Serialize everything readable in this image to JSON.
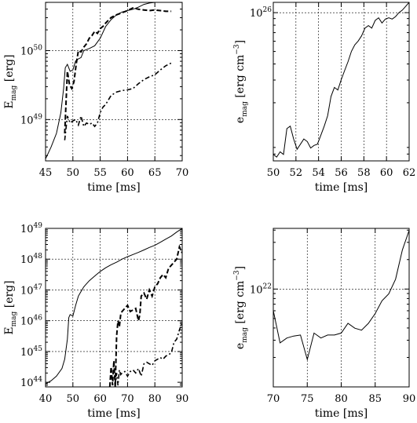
{
  "chart_data": [
    {
      "id": "tl",
      "type": "line",
      "xlabel": "time [ms]",
      "ylabel_main": "E",
      "ylabel_sub": "mag",
      "ylabel_rest": " [erg]",
      "xlim": [
        45,
        70
      ],
      "ylim_log10": [
        48.4,
        50.7
      ],
      "xticks": [
        45,
        50,
        55,
        60,
        65,
        70
      ],
      "xtick_labels": [
        "45",
        "50",
        "55",
        "60",
        "65",
        "70"
      ],
      "yticks_log10": [
        49,
        50
      ],
      "ytick_base": "10",
      "ytick_exps": [
        "49",
        "50"
      ],
      "xgrid": [
        50,
        55,
        60,
        65
      ],
      "ygrid_log10": [
        49,
        50
      ],
      "series": [
        {
          "style": "solid",
          "x": [
            45,
            46,
            47,
            47.8,
            48.3,
            48.6,
            49,
            49.5,
            50,
            50.5,
            51,
            51.5,
            52,
            53,
            54,
            55,
            56,
            57,
            58,
            59,
            60,
            61,
            62,
            63,
            64,
            65,
            66,
            67,
            68,
            69,
            70
          ],
          "y": [
            48.43,
            48.6,
            48.8,
            49.1,
            49.45,
            49.75,
            49.8,
            49.7,
            49.72,
            49.85,
            49.88,
            49.9,
            50.0,
            50.03,
            50.07,
            50.18,
            50.35,
            50.45,
            50.52,
            50.56,
            50.58,
            50.6,
            50.63,
            50.67,
            50.69,
            50.7,
            50.7,
            50.7,
            50.7,
            50.7,
            50.7
          ]
        },
        {
          "style": "dashed",
          "x": [
            48.5,
            49,
            49.4,
            49.8,
            50.2,
            50.6,
            51,
            51.5,
            52,
            52.5,
            53,
            53.5,
            54,
            54.5,
            55,
            55.5,
            56,
            57,
            58,
            59,
            60,
            61,
            62,
            63,
            64,
            65,
            66,
            67,
            68
          ],
          "y": [
            48.8,
            49.7,
            49.5,
            49.45,
            49.55,
            49.8,
            50.0,
            49.98,
            50.05,
            50.1,
            50.18,
            50.22,
            50.28,
            50.25,
            50.32,
            50.35,
            50.4,
            50.48,
            50.52,
            50.55,
            50.58,
            50.62,
            50.6,
            50.59,
            50.58,
            50.59,
            50.58,
            50.57,
            50.57
          ]
        },
        {
          "style": "dashdot",
          "x": [
            48.5,
            49,
            49.5,
            50,
            50.5,
            51,
            51.5,
            52,
            52.5,
            53,
            53.5,
            54,
            54.5,
            55,
            55.5,
            56,
            57,
            58,
            59,
            60,
            61,
            62,
            63,
            64,
            65,
            66,
            67,
            68
          ],
          "y": [
            48.7,
            49.05,
            48.95,
            48.98,
            49.0,
            48.92,
            49.05,
            48.9,
            48.95,
            48.93,
            48.95,
            48.9,
            48.95,
            49.1,
            49.18,
            49.22,
            49.35,
            49.4,
            49.42,
            49.43,
            49.45,
            49.52,
            49.58,
            49.62,
            49.65,
            49.72,
            49.78,
            49.82
          ]
        }
      ]
    },
    {
      "id": "tr",
      "type": "line",
      "xlabel": "time [ms]",
      "ylabel_main": "e",
      "ylabel_sub": "mag",
      "ylabel_rest": " [erg cm",
      "ylabel_sup": "−3",
      "ylabel_end": "]",
      "xlim": [
        50,
        62
      ],
      "ylim_log10": [
        24.85,
        26.08
      ],
      "xticks": [
        50,
        52,
        54,
        56,
        58,
        60,
        62
      ],
      "xtick_labels": [
        "50",
        "52",
        "54",
        "56",
        "58",
        "60",
        "62"
      ],
      "yticks_log10": [
        26
      ],
      "ytick_base": "10",
      "ytick_exps": [
        "26"
      ],
      "xgrid": [
        52,
        54,
        56,
        58,
        60
      ],
      "ygrid_log10": [
        26
      ],
      "series": [
        {
          "style": "solid",
          "x": [
            50,
            50.3,
            50.6,
            50.9,
            51.2,
            51.5,
            51.8,
            52.1,
            52.4,
            52.7,
            53,
            53.3,
            53.6,
            53.9,
            54.2,
            54.5,
            54.8,
            55.1,
            55.4,
            55.7,
            56,
            56.3,
            56.6,
            56.9,
            57.2,
            57.5,
            57.8,
            58.1,
            58.4,
            58.7,
            59,
            59.3,
            59.6,
            59.9,
            60.2,
            60.5,
            60.8,
            61.1,
            61.4,
            61.7,
            62
          ],
          "y": [
            24.9,
            24.88,
            24.92,
            24.9,
            25.1,
            25.12,
            25.02,
            24.94,
            24.98,
            25.02,
            25.0,
            24.95,
            24.97,
            24.98,
            25.05,
            25.12,
            25.2,
            25.35,
            25.42,
            25.4,
            25.48,
            25.55,
            25.62,
            25.7,
            25.75,
            25.78,
            25.82,
            25.88,
            25.9,
            25.88,
            25.94,
            25.96,
            25.92,
            25.95,
            25.96,
            25.95,
            25.97,
            26.0,
            26.02,
            26.05,
            26.08
          ]
        }
      ]
    },
    {
      "id": "bl",
      "type": "line",
      "xlabel": "time [ms]",
      "ylabel_main": "E",
      "ylabel_sub": "mag",
      "ylabel_rest": " [erg]",
      "xlim": [
        40,
        90
      ],
      "ylim_log10": [
        43.85,
        49.0
      ],
      "xticks": [
        40,
        50,
        60,
        70,
        80,
        90
      ],
      "xtick_labels": [
        "40",
        "50",
        "60",
        "70",
        "80",
        "90"
      ],
      "yticks_log10": [
        44,
        45,
        46,
        47,
        48,
        49
      ],
      "ytick_base": "10",
      "ytick_exps": [
        "44",
        "45",
        "46",
        "47",
        "48",
        "49"
      ],
      "xgrid": [
        50,
        60,
        70,
        80
      ],
      "ygrid_log10": [
        45,
        46,
        47,
        48
      ],
      "series": [
        {
          "style": "solid",
          "x": [
            40,
            42,
            44,
            46,
            47,
            48,
            48.5,
            49,
            50,
            51,
            52,
            53,
            54,
            55,
            56,
            58,
            60,
            62,
            64,
            66,
            68,
            70,
            72,
            74,
            76,
            78,
            80,
            82,
            84,
            86,
            88,
            90
          ],
          "y": [
            43.95,
            44.05,
            44.2,
            44.45,
            44.75,
            45.4,
            46.1,
            46.2,
            46.15,
            46.5,
            46.8,
            46.95,
            47.1,
            47.2,
            47.3,
            47.45,
            47.6,
            47.72,
            47.82,
            47.9,
            48.0,
            48.08,
            48.15,
            48.22,
            48.3,
            48.38,
            48.45,
            48.55,
            48.65,
            48.75,
            48.88,
            49.0
          ]
        },
        {
          "style": "dashed",
          "x": [
            63.5,
            64,
            64.5,
            65,
            65.5,
            66,
            66.5,
            67,
            67.5,
            68,
            69,
            70,
            71,
            72,
            73,
            74,
            74.5,
            75,
            76,
            77,
            78,
            79,
            80,
            81,
            82,
            83,
            84,
            85,
            86,
            87,
            88,
            89,
            90
          ],
          "y": [
            43.85,
            44.5,
            43.9,
            44.7,
            43.85,
            45.5,
            46.0,
            45.8,
            46.2,
            46.3,
            46.4,
            46.5,
            46.3,
            46.35,
            46.4,
            46.0,
            46.2,
            46.8,
            46.9,
            46.7,
            47.0,
            46.8,
            47.1,
            47.2,
            47.4,
            47.5,
            47.4,
            47.7,
            47.8,
            47.9,
            48.0,
            48.4,
            48.2
          ]
        },
        {
          "style": "dashdot",
          "x": [
            65.5,
            66,
            66.5,
            67,
            67.5,
            68,
            69,
            70,
            71,
            72,
            73,
            74,
            75,
            76,
            77,
            78,
            79,
            80,
            81,
            82,
            83,
            84,
            85,
            86,
            87,
            88,
            89,
            90
          ],
          "y": [
            43.85,
            44.3,
            43.9,
            44.4,
            44.25,
            44.3,
            44.35,
            44.2,
            44.35,
            44.4,
            44.3,
            44.45,
            44.2,
            44.6,
            44.65,
            44.6,
            44.55,
            44.7,
            44.75,
            44.8,
            44.75,
            44.85,
            44.9,
            44.95,
            45.3,
            45.4,
            45.7,
            45.95
          ]
        }
      ]
    },
    {
      "id": "br",
      "type": "line",
      "xlabel": "time [ms]",
      "ylabel_main": "e",
      "ylabel_sub": "mag",
      "ylabel_rest": " [erg cm",
      "ylabel_sup": "−3",
      "ylabel_end": "]",
      "xlim": [
        70,
        90
      ],
      "ylim_log10": [
        21.0,
        22.62
      ],
      "xticks": [
        70,
        75,
        80,
        85,
        90
      ],
      "xtick_labels": [
        "70",
        "75",
        "80",
        "85",
        "90"
      ],
      "yticks_log10": [
        22
      ],
      "ytick_base": "10",
      "ytick_exps": [
        "22"
      ],
      "xgrid": [
        75,
        80,
        85
      ],
      "ygrid_log10": [
        22
      ],
      "series": [
        {
          "style": "solid",
          "x": [
            70,
            71,
            72,
            73,
            74,
            75,
            76,
            77,
            78,
            79,
            80,
            81,
            82,
            83,
            84,
            85,
            86,
            87,
            88,
            89,
            90
          ],
          "y": [
            21.78,
            21.45,
            21.5,
            21.52,
            21.53,
            21.28,
            21.55,
            21.5,
            21.53,
            21.53,
            21.55,
            21.65,
            21.6,
            21.58,
            21.65,
            21.75,
            21.88,
            21.95,
            22.1,
            22.4,
            22.6
          ]
        }
      ]
    }
  ]
}
